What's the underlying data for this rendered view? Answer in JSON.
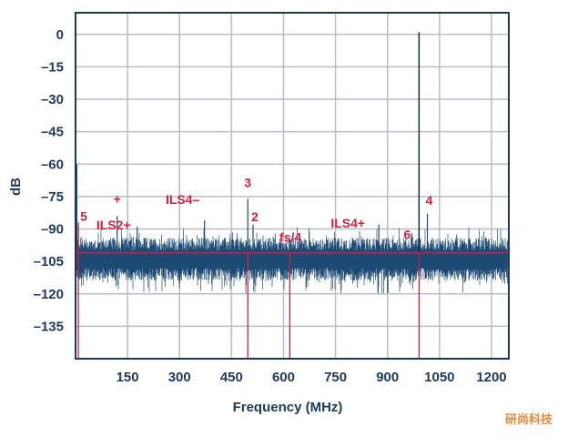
{
  "chart_data": {
    "type": "line",
    "xlabel": "Frequency (MHz)",
    "ylabel": "dB",
    "xlim": [
      0,
      1250
    ],
    "ylim": [
      -150,
      10
    ],
    "xticks": [
      150,
      300,
      450,
      600,
      750,
      900,
      1050,
      1200
    ],
    "yticks": [
      0,
      -15,
      -30,
      -45,
      -60,
      -75,
      -90,
      -105,
      -120,
      -135
    ],
    "grid": true,
    "noise_floor_db": -104,
    "reference_line_db": -101,
    "fundamental": {
      "freq": 991,
      "db": 1
    },
    "marker_lines_mhz": [
      8,
      497,
      618,
      991
    ],
    "spurs": [
      {
        "label": "5",
        "freq": 8,
        "db": -87
      },
      {
        "label": "+",
        "freq": 120,
        "db": -84
      },
      {
        "label": "ILS2+",
        "freq": 178,
        "db": -89
      },
      {
        "label": "ILS4–",
        "freq": 372,
        "db": -86
      },
      {
        "label": "3",
        "freq": 497,
        "db": -76
      },
      {
        "label": "2",
        "freq": 512,
        "db": -88
      },
      {
        "label": "fs/4",
        "freq": 620,
        "db": -95
      },
      {
        "label": "ILS4+",
        "freq": 875,
        "db": -88
      },
      {
        "label": "6",
        "freq": 970,
        "db": -92
      },
      {
        "label": "4",
        "freq": 1015,
        "db": -83
      }
    ],
    "colors": {
      "trace": "#1d4a74",
      "marker": "#d21f3c",
      "grid": "#b8bccb",
      "axis": "#1d3a5c"
    }
  },
  "watermark": "研尚科技"
}
